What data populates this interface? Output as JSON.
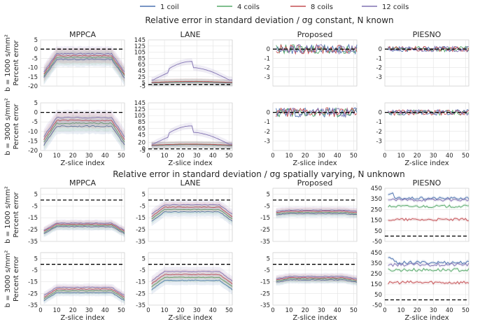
{
  "legend": [
    {
      "label": "1 coil",
      "color": "#4c72b0"
    },
    {
      "label": "4 coils",
      "color": "#55a868"
    },
    {
      "label": "8 coils",
      "color": "#c44e52"
    },
    {
      "label": "12 coils",
      "color": "#8172b2"
    }
  ],
  "section_titles": [
    "Relative error in standard deviation / σg constant, N known",
    "Relative error in standard deviation / σg spatially varying, N unknown"
  ],
  "column_titles": [
    "MPPCA",
    "LANE",
    "Proposed",
    "PIESNO"
  ],
  "row_labels": [
    "b = 1000 s/mm²",
    "b = 3000 s/mm²"
  ],
  "ylabel": "Percent error",
  "xlabel": "Z-slice index",
  "chart_data": {
    "type": "line",
    "x_range": [
      0,
      52
    ],
    "x_ticks": [
      0,
      10,
      20,
      30,
      40,
      50
    ],
    "series_names": [
      "1 coil",
      "4 coils",
      "8 coils",
      "12 coils"
    ],
    "reference_line": 0,
    "panels": [
      {
        "section": 0,
        "row": 0,
        "col": 0,
        "method": "MPPCA",
        "ylim": [
          -20,
          5
        ],
        "yticks": [
          5,
          0,
          -5,
          -10,
          -15,
          -20
        ],
        "level": -4,
        "edge_drop": 10,
        "band": 4,
        "spread": 1
      },
      {
        "section": 0,
        "row": 0,
        "col": 1,
        "method": "LANE",
        "ylim": [
          -5,
          145
        ],
        "yticks": [
          145,
          125,
          105,
          85,
          65,
          45,
          25,
          5,
          -5
        ],
        "level": 5,
        "peak12": 80,
        "band": 10,
        "spread": 3
      },
      {
        "section": 0,
        "row": 0,
        "col": 2,
        "method": "Proposed",
        "ylim": [
          -4,
          1
        ],
        "yticks": [
          0,
          -1,
          -2,
          -3
        ],
        "level": 0,
        "noise": 0.5
      },
      {
        "section": 0,
        "row": 0,
        "col": 3,
        "method": "PIESNO",
        "ylim": [
          -4,
          1
        ],
        "yticks": [
          0,
          -1,
          -2,
          -3
        ],
        "level": 0,
        "noise": 0.3
      },
      {
        "section": 0,
        "row": 1,
        "col": 0,
        "method": "MPPCA",
        "ylim": [
          -20,
          5
        ],
        "yticks": [
          5,
          0,
          -5,
          -10,
          -15,
          -20
        ],
        "level": -5,
        "edge_drop": 10,
        "band": 4,
        "spread": 1.5
      },
      {
        "section": 0,
        "row": 1,
        "col": 1,
        "method": "LANE",
        "ylim": [
          -5,
          145
        ],
        "yticks": [
          145,
          125,
          105,
          85,
          65,
          45,
          20,
          0,
          -5
        ],
        "level": 10,
        "peak12": 75,
        "band": 10,
        "spread": 5
      },
      {
        "section": 0,
        "row": 1,
        "col": 2,
        "method": "Proposed",
        "ylim": [
          -4,
          1
        ],
        "yticks": [
          0,
          -1,
          -2,
          -3
        ],
        "level": 0,
        "noise": 0.5
      },
      {
        "section": 0,
        "row": 1,
        "col": 3,
        "method": "PIESNO",
        "ylim": [
          -4,
          1
        ],
        "yticks": [
          0,
          -1,
          -2,
          -3
        ],
        "level": 0,
        "noise": 0.3
      },
      {
        "section": 1,
        "row": 0,
        "col": 0,
        "method": "MPPCA",
        "ylim": [
          -35,
          10
        ],
        "yticks": [
          5,
          -5,
          -15,
          -25,
          -35
        ],
        "level": -21,
        "edge_drop": 6,
        "band": 3,
        "spread": 1
      },
      {
        "section": 1,
        "row": 0,
        "col": 1,
        "method": "LANE",
        "ylim": [
          -35,
          10
        ],
        "yticks": [
          5,
          -5,
          -15,
          -25,
          -35
        ],
        "level": -7,
        "edge_drop": 8,
        "band": 4,
        "spread": 2
      },
      {
        "section": 1,
        "row": 0,
        "col": 2,
        "method": "Proposed",
        "ylim": [
          -35,
          10
        ],
        "yticks": [
          5,
          -5,
          -15,
          -25,
          -35
        ],
        "level": -10,
        "edge_drop": 1,
        "band": 3,
        "spread": 1
      },
      {
        "section": 1,
        "row": 0,
        "col": 3,
        "method": "PIESNO",
        "ylim": [
          -50,
          450
        ],
        "yticks": [
          450,
          350,
          250,
          150,
          50,
          -50
        ],
        "series_levels": [
          355,
          280,
          155,
          340
        ],
        "noise": 12
      },
      {
        "section": 1,
        "row": 1,
        "col": 0,
        "method": "MPPCA",
        "ylim": [
          -35,
          10
        ],
        "yticks": [
          5,
          -5,
          -15,
          -25,
          -35
        ],
        "level": -22,
        "edge_drop": 7,
        "band": 3,
        "spread": 1.5
      },
      {
        "section": 1,
        "row": 1,
        "col": 1,
        "method": "LANE",
        "ylim": [
          -35,
          10
        ],
        "yticks": [
          5,
          -5,
          -15,
          -25,
          -35
        ],
        "level": -10,
        "edge_drop": 8,
        "band": 4,
        "spread": 2.5
      },
      {
        "section": 1,
        "row": 1,
        "col": 2,
        "method": "Proposed",
        "ylim": [
          -35,
          10
        ],
        "yticks": [
          5,
          -5,
          -15,
          -25,
          -35
        ],
        "level": -12,
        "edge_drop": 2,
        "band": 3,
        "spread": 1
      },
      {
        "section": 1,
        "row": 1,
        "col": 3,
        "method": "PIESNO",
        "ylim": [
          -50,
          450
        ],
        "yticks": [
          450,
          350,
          250,
          150,
          50,
          -50
        ],
        "series_levels": [
          355,
          285,
          165,
          335
        ],
        "noise": 15
      }
    ]
  }
}
